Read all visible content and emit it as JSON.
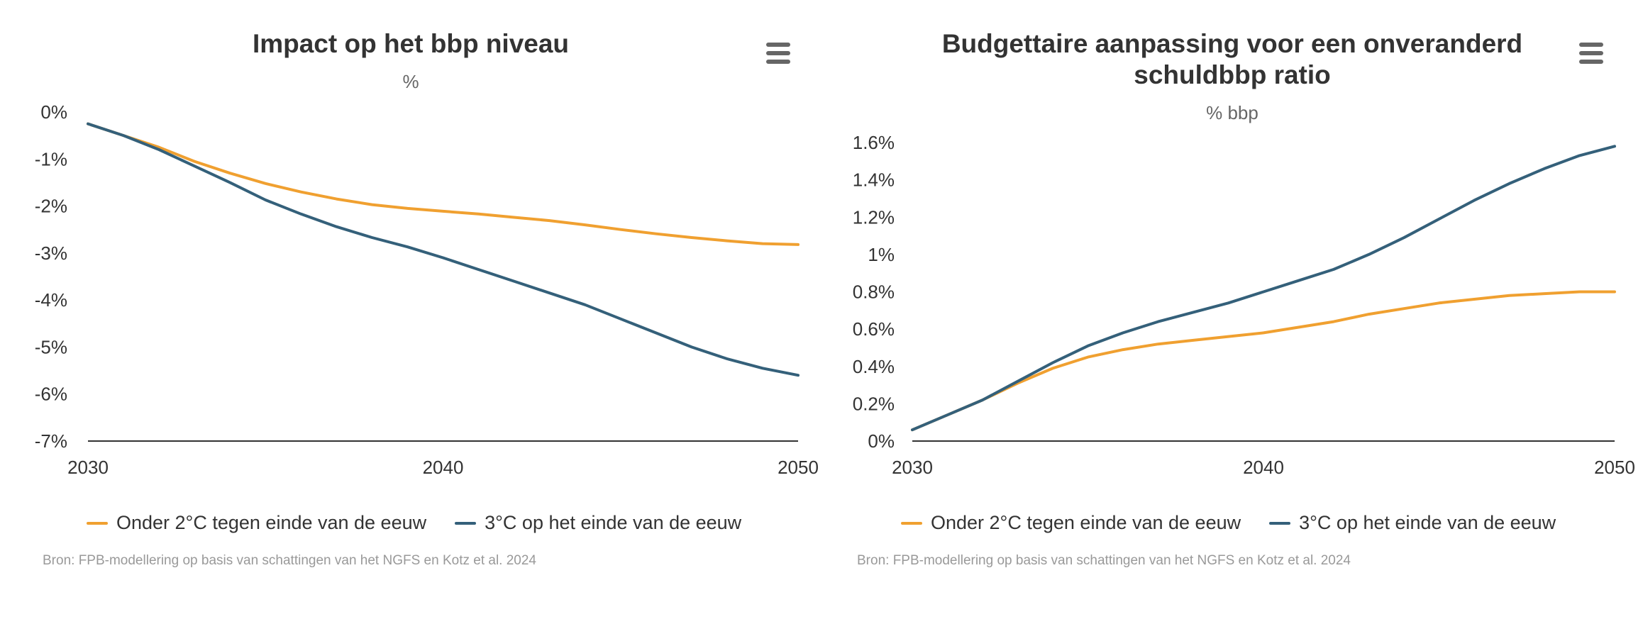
{
  "colors": {
    "orange": "#F0A030",
    "blue": "#34607A",
    "axis": "#333333"
  },
  "menu_icon": "hamburger-menu-icon",
  "chart_data": [
    {
      "type": "line",
      "title": "Impact op het bbp niveau",
      "subtitle": "%",
      "x": [
        2030,
        2031,
        2032,
        2033,
        2034,
        2035,
        2036,
        2037,
        2038,
        2039,
        2040,
        2041,
        2042,
        2043,
        2044,
        2045,
        2046,
        2047,
        2048,
        2049,
        2050
      ],
      "xlim": [
        2030,
        2050
      ],
      "xticks": [
        2030,
        2040,
        2050
      ],
      "xtick_labels": [
        "2030",
        "2040",
        "2050"
      ],
      "ylim": [
        -7,
        0
      ],
      "yticks": [
        0,
        -1,
        -2,
        -3,
        -4,
        -5,
        -6,
        -7
      ],
      "ytick_labels": [
        "0%",
        "-1%",
        "-2%",
        "-3%",
        "-4%",
        "-5%",
        "-6%",
        "-7%"
      ],
      "series": [
        {
          "name": "Onder 2°C tegen einde van de eeuw",
          "color": "#F0A030",
          "values": [
            -0.25,
            -0.5,
            -0.75,
            -1.05,
            -1.3,
            -1.52,
            -1.7,
            -1.85,
            -1.97,
            -2.05,
            -2.11,
            -2.17,
            -2.24,
            -2.31,
            -2.4,
            -2.5,
            -2.59,
            -2.67,
            -2.74,
            -2.8,
            -2.82
          ]
        },
        {
          "name": "3°C op het einde van de eeuw",
          "color": "#34607A",
          "values": [
            -0.25,
            -0.5,
            -0.8,
            -1.15,
            -1.5,
            -1.87,
            -2.17,
            -2.44,
            -2.67,
            -2.87,
            -3.1,
            -3.35,
            -3.6,
            -3.85,
            -4.1,
            -4.4,
            -4.7,
            -5.0,
            -5.25,
            -5.45,
            -5.6
          ]
        }
      ],
      "legend": [
        "Onder 2°C tegen einde van de eeuw",
        "3°C op het einde van de eeuw"
      ],
      "legend_position": "bottom",
      "grid": false,
      "source": "Bron: FPB-modellering op basis van schattingen van het NGFS en Kotz et al. 2024"
    },
    {
      "type": "line",
      "title": "Budgettaire aanpassing voor een onveranderd schuldbbp ratio",
      "title_lines": [
        "Budgettaire aanpassing voor een onveranderd",
        "schuldbbp ratio"
      ],
      "subtitle": "% bbp",
      "x": [
        2030,
        2031,
        2032,
        2033,
        2034,
        2035,
        2036,
        2037,
        2038,
        2039,
        2040,
        2041,
        2042,
        2043,
        2044,
        2045,
        2046,
        2047,
        2048,
        2049,
        2050
      ],
      "xlim": [
        2030,
        2050
      ],
      "xticks": [
        2030,
        2040,
        2050
      ],
      "xtick_labels": [
        "2030",
        "2040",
        "2050"
      ],
      "ylim": [
        0,
        1.6
      ],
      "yticks": [
        0,
        0.2,
        0.4,
        0.6,
        0.8,
        1.0,
        1.2,
        1.4,
        1.6
      ],
      "ytick_labels": [
        "0%",
        "0.2%",
        "0.4%",
        "0.6%",
        "0.8%",
        "1%",
        "1.2%",
        "1.4%",
        "1.6%"
      ],
      "series": [
        {
          "name": "Onder 2°C tegen einde van de eeuw",
          "color": "#F0A030",
          "values": [
            0.06,
            0.14,
            0.22,
            0.31,
            0.39,
            0.45,
            0.49,
            0.52,
            0.54,
            0.56,
            0.58,
            0.61,
            0.64,
            0.68,
            0.71,
            0.74,
            0.76,
            0.78,
            0.79,
            0.8,
            0.8
          ]
        },
        {
          "name": "3°C op het einde van de eeuw",
          "color": "#34607A",
          "values": [
            0.06,
            0.14,
            0.22,
            0.32,
            0.42,
            0.51,
            0.58,
            0.64,
            0.69,
            0.74,
            0.8,
            0.86,
            0.92,
            1.0,
            1.09,
            1.19,
            1.29,
            1.38,
            1.46,
            1.53,
            1.58
          ]
        }
      ],
      "legend": [
        "Onder 2°C tegen einde van de eeuw",
        "3°C op het einde van de eeuw"
      ],
      "legend_position": "bottom",
      "grid": false,
      "source": "Bron: FPB-modellering op basis van schattingen van het NGFS en Kotz et al. 2024"
    }
  ]
}
